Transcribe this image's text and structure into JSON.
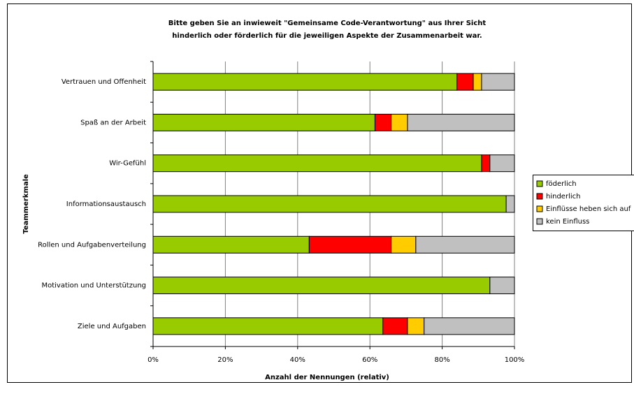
{
  "chart_data": {
    "type": "stacked_bar_horizontal",
    "title": [
      "Bitte geben Sie an inwieweit \"Gemeinsame Code-Verantwortung\" aus Ihrer Sicht",
      "hinderlich oder förderlich für die jeweiligen Aspekte der Zusammenarbeit war."
    ],
    "y_label": "Teammerkmale",
    "x_label": "Anzahl der Nennungen (relativ)",
    "categories": [
      "Vertrauen und Offenheit",
      "Spaß an der Arbeit",
      "Wir-Gefühl",
      "Informationsaustausch",
      "Rollen und Aufgabenverteilung",
      "Motivation und Unterstützung",
      "Ziele und Aufgaben"
    ],
    "series": [
      {
        "name": "föderlich",
        "color": "#99cc00",
        "values": [
          84.1,
          61.4,
          90.9,
          97.7,
          43.2,
          93.2,
          63.6
        ]
      },
      {
        "name": "hinderlich",
        "color": "#ff0000",
        "values": [
          4.5,
          4.5,
          2.3,
          0,
          22.7,
          0,
          6.8
        ]
      },
      {
        "name": "Einflüsse heben sich auf",
        "color": "#ffcc00",
        "values": [
          2.3,
          4.5,
          0,
          0,
          6.8,
          0,
          4.6
        ]
      },
      {
        "name": "kein Einfluss",
        "color": "#c0c0c0",
        "values": [
          9.1,
          29.6,
          6.8,
          2.3,
          27.3,
          6.8,
          25.0
        ]
      }
    ],
    "xlim": [
      0,
      100
    ],
    "xticks": [
      {
        "value": 0,
        "label": "0%"
      },
      {
        "value": 20,
        "label": "20%"
      },
      {
        "value": 40,
        "label": "40%"
      },
      {
        "value": 60,
        "label": "60%"
      },
      {
        "value": 80,
        "label": "80%"
      },
      {
        "value": 100,
        "label": "100%"
      }
    ],
    "grid": true,
    "legend": "right"
  }
}
